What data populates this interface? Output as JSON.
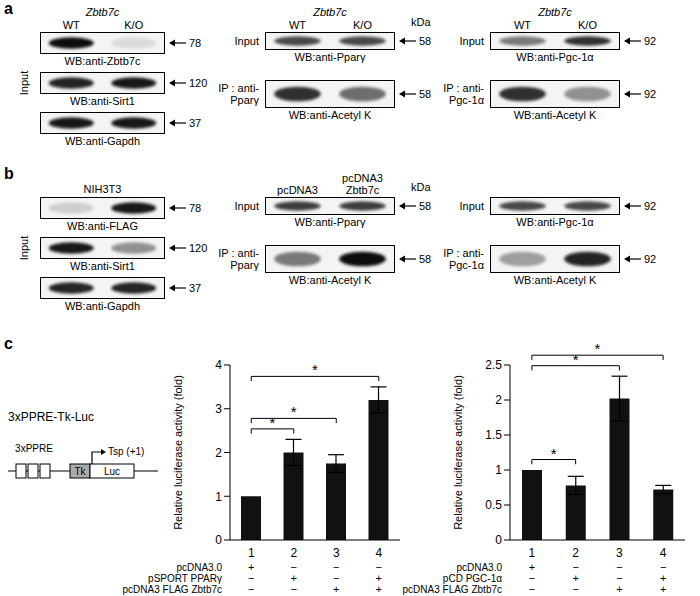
{
  "panels": [
    {
      "letter": "a",
      "columns": [
        {
          "header": "Zbtb7c",
          "lanes": [
            "WT",
            "K/O"
          ],
          "rows": [
            {
              "group": "Input",
              "label": "WB:anti-Zbtb7c",
              "kda": 78,
              "bands": [
                0.95,
                0.1
              ]
            },
            {
              "group": "Input",
              "label": "WB:anti-Sirt1",
              "kda": 120,
              "bands": [
                0.85,
                0.9
              ]
            },
            {
              "group": "Input",
              "label": "WB:anti-Gapdh",
              "kda": 37,
              "bands": [
                0.9,
                0.9
              ]
            }
          ]
        },
        {
          "header": "Zbtb7c",
          "lanes": [
            "WT",
            "K/O"
          ],
          "kda_unit": "kDa",
          "rows": [
            {
              "group": "Input",
              "label": "WB:anti-Pparγ",
              "kda": 58,
              "bands": [
                0.7,
                0.7
              ]
            },
            {
              "group": "IP : anti-Pparγ",
              "label": "WB:anti-Acetyl K",
              "kda": 58,
              "bands": [
                0.8,
                0.55
              ]
            }
          ]
        },
        {
          "header": "Zbtb7c",
          "lanes": [
            "WT",
            "K/O"
          ],
          "rows": [
            {
              "group": "Input",
              "label": "WB:anti-Pgc-1α",
              "kda": 92,
              "bands": [
                0.5,
                0.8
              ]
            },
            {
              "group": "IP : anti-Pgc-1α",
              "label": "WB:anti-Acetyl K",
              "kda": 92,
              "bands": [
                0.8,
                0.4
              ]
            }
          ]
        }
      ]
    },
    {
      "letter": "b",
      "columns": [
        {
          "header": "NIH3T3",
          "rows": [
            {
              "group": "Input",
              "label": "WB:anti-FLAG",
              "kda": 78,
              "bands": [
                0.15,
                0.9
              ]
            },
            {
              "group": "Input",
              "label": "WB:anti-Sirt1",
              "kda": 120,
              "bands": [
                0.9,
                0.4
              ]
            },
            {
              "group": "Input",
              "label": "WB:anti-Gapdh",
              "kda": 37,
              "bands": [
                0.85,
                0.85
              ]
            }
          ]
        },
        {
          "lanes": [
            "pcDNA3",
            "pcDNA3 Zbtb7c"
          ],
          "kda_unit": "kDa",
          "rows": [
            {
              "group": "Input",
              "label": "WB:anti-Pparγ",
              "kda": 58,
              "bands": [
                0.75,
                0.75
              ]
            },
            {
              "group": "IP : anti-Pparγ",
              "label": "WB:anti-Acetyl K",
              "kda": 58,
              "bands": [
                0.5,
                0.95
              ]
            }
          ]
        },
        {
          "rows": [
            {
              "group": "Input",
              "label": "WB:anti-Pgc-1α",
              "kda": 92,
              "bands": [
                0.7,
                0.7
              ]
            },
            {
              "group": "IP : anti-Pgc-1α",
              "label": "WB:anti-Acetyl K",
              "kda": 92,
              "bands": [
                0.35,
                0.85
              ]
            }
          ]
        }
      ]
    },
    {
      "letter": "c",
      "diagram": {
        "title": "3xPPRE-Tk-Luc",
        "enhancer": "3xPPRE",
        "promoter": "Tk",
        "reporter": "Luc",
        "start": "Tsp (+1)"
      }
    }
  ],
  "chart_data": [
    {
      "type": "bar",
      "y_label": "Relative luciferase activity (fold)",
      "categories": [
        "1",
        "2",
        "3",
        "4"
      ],
      "values": [
        1,
        2.0,
        1.75,
        3.2
      ],
      "errors": [
        0,
        0.3,
        0.2,
        0.3
      ],
      "color": "#111111",
      "ylim": [
        0,
        4
      ],
      "yticks": [
        0,
        1,
        2,
        3,
        4
      ],
      "significance": [
        {
          "from": "1",
          "to": "2",
          "label": "*"
        },
        {
          "from": "1",
          "to": "3",
          "label": "*"
        },
        {
          "from": "1",
          "to": "4",
          "label": "*"
        }
      ],
      "conditions": [
        {
          "label": "pcDNA3.0",
          "marks": [
            "+",
            "−",
            "−",
            "−"
          ]
        },
        {
          "label": "pSPORT PPARγ",
          "marks": [
            "−",
            "+",
            "−",
            "+"
          ]
        },
        {
          "label": "pcDNA3 FLAG Zbtb7c",
          "marks": [
            "−",
            "−",
            "+",
            "+"
          ]
        }
      ]
    },
    {
      "type": "bar",
      "y_label": "Relative luciferase activity (fold)",
      "categories": [
        "1",
        "2",
        "3",
        "4"
      ],
      "values": [
        1,
        0.78,
        2.02,
        0.72
      ],
      "errors": [
        0,
        0.13,
        0.32,
        0.06
      ],
      "color": "#111111",
      "ylim": [
        0,
        2.5
      ],
      "yticks": [
        0,
        0.5,
        1,
        1.5,
        2,
        2.5
      ],
      "significance": [
        {
          "from": "1",
          "to": "2",
          "label": "*"
        },
        {
          "from": "1",
          "to": "3",
          "label": "*"
        },
        {
          "from": "1",
          "to": "4",
          "label": "*"
        }
      ],
      "conditions": [
        {
          "label": "pcDNA3.0",
          "marks": [
            "+",
            "−",
            "−",
            "−"
          ]
        },
        {
          "label": "pCD PGC-1α",
          "marks": [
            "−",
            "+",
            "−",
            "+"
          ]
        },
        {
          "label": "pcDNA3 FLAG Zbtb7c",
          "marks": [
            "−",
            "−",
            "+",
            "+"
          ]
        }
      ]
    }
  ]
}
